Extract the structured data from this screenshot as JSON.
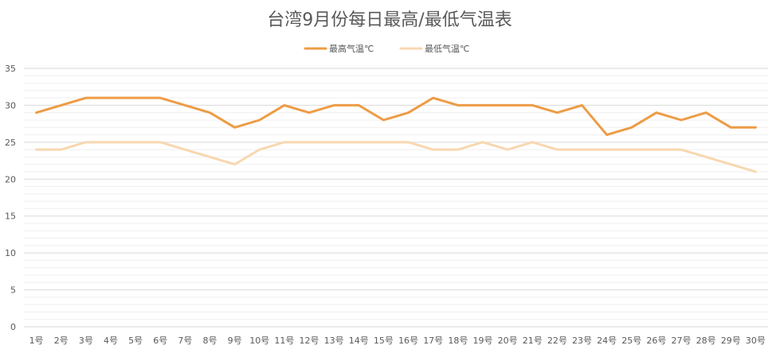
{
  "chart_data": {
    "type": "line",
    "title": "台湾9月份每日最高/最低气温表",
    "xlabel": "",
    "ylabel": "",
    "categories": [
      "1号",
      "2号",
      "3号",
      "4号",
      "5号",
      "6号",
      "7号",
      "8号",
      "9号",
      "10号",
      "11号",
      "12号",
      "13号",
      "14号",
      "15号",
      "16号",
      "17号",
      "18号",
      "19号",
      "20号",
      "21号",
      "22号",
      "23号",
      "24号",
      "25号",
      "26号",
      "27号",
      "28号",
      "29号",
      "30号"
    ],
    "series": [
      {
        "name": "最高气温℃",
        "color": "#ed9c45",
        "values": [
          29,
          30,
          31,
          31,
          31,
          31,
          30,
          29,
          27,
          28,
          30,
          29,
          30,
          30,
          28,
          29,
          31,
          30,
          30,
          30,
          30,
          29,
          30,
          26,
          27,
          29,
          28,
          29,
          27,
          27
        ]
      },
      {
        "name": "最低气温℃",
        "color": "#f8d7b0",
        "values": [
          24,
          24,
          25,
          25,
          25,
          25,
          24,
          23,
          22,
          24,
          25,
          25,
          25,
          25,
          25,
          25,
          24,
          24,
          25,
          24,
          25,
          24,
          24,
          24,
          24,
          24,
          24,
          23,
          22,
          21
        ]
      }
    ],
    "ylim": [
      0,
      35
    ],
    "yticks": [
      "0",
      "5",
      "10",
      "15",
      "20",
      "25",
      "30",
      "35"
    ],
    "grid": true,
    "legend_position": "top"
  }
}
